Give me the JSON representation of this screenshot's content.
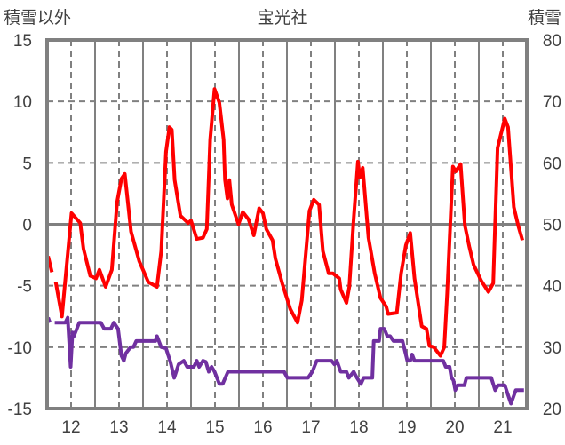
{
  "chart_data": {
    "type": "line",
    "title": "宝光社",
    "ylabel_left": "積雪以外",
    "ylabel_right": "積雪",
    "xlim": [
      11.5,
      21.5
    ],
    "ylim_left": [
      -15,
      15
    ],
    "ylim_right": [
      20,
      80
    ],
    "x_ticks": [
      "12",
      "13",
      "14",
      "15",
      "16",
      "17",
      "18",
      "19",
      "20",
      "21"
    ],
    "y_ticks_left": [
      "-15",
      "-10",
      "-5",
      "0",
      "5",
      "10",
      "15"
    ],
    "y_ticks_right": [
      "20",
      "30",
      "40",
      "50",
      "60",
      "70",
      "80"
    ],
    "grid": true,
    "colors": {
      "left_series": "#ff0000",
      "right_series": "#7030a0",
      "grid": "#808080"
    },
    "series": [
      {
        "name": "積雪以外",
        "axis": "left",
        "segments": [
          [
            [
              11.52,
              -2.6
            ],
            [
              11.6,
              -3.9
            ]
          ],
          [
            [
              11.68,
              -4.7
            ],
            [
              11.81,
              -7.5
            ],
            [
              12.01,
              0.9
            ],
            [
              12.19,
              0.1
            ],
            [
              12.26,
              -2.0
            ],
            [
              12.4,
              -4.2
            ],
            [
              12.52,
              -4.4
            ],
            [
              12.59,
              -3.7
            ],
            [
              12.72,
              -5.1
            ],
            [
              12.85,
              -3.7
            ],
            [
              12.96,
              1.8
            ],
            [
              13.05,
              3.7
            ],
            [
              13.12,
              4.1
            ],
            [
              13.25,
              -0.6
            ],
            [
              13.42,
              -3.0
            ],
            [
              13.61,
              -4.7
            ],
            [
              13.79,
              -5.1
            ],
            [
              13.88,
              -2.2
            ],
            [
              13.98,
              5.9
            ],
            [
              14.05,
              7.9
            ],
            [
              14.1,
              7.7
            ],
            [
              14.16,
              3.6
            ],
            [
              14.28,
              0.7
            ],
            [
              14.44,
              0.1
            ],
            [
              14.5,
              0.3
            ],
            [
              14.62,
              -1.2
            ],
            [
              14.75,
              -1.1
            ],
            [
              14.83,
              -0.4
            ],
            [
              14.9,
              6.9
            ],
            [
              14.99,
              11.0
            ],
            [
              15.09,
              9.9
            ],
            [
              15.18,
              6.9
            ],
            [
              15.21,
              3.6
            ],
            [
              15.26,
              2.1
            ],
            [
              15.3,
              3.6
            ],
            [
              15.35,
              1.6
            ],
            [
              15.49,
              0.0
            ],
            [
              15.58,
              1.0
            ],
            [
              15.7,
              0.4
            ],
            [
              15.81,
              -0.9
            ],
            [
              15.92,
              1.3
            ],
            [
              16.0,
              0.9
            ],
            [
              16.07,
              -0.4
            ],
            [
              16.2,
              -1.3
            ],
            [
              16.26,
              -2.8
            ],
            [
              16.41,
              -4.9
            ],
            [
              16.57,
              -6.9
            ],
            [
              16.72,
              -8.0
            ],
            [
              16.81,
              -6.2
            ],
            [
              16.97,
              1.1
            ],
            [
              17.06,
              2.0
            ],
            [
              17.17,
              1.6
            ],
            [
              17.25,
              -2.2
            ],
            [
              17.37,
              -4.0
            ],
            [
              17.46,
              -4.0
            ],
            [
              17.59,
              -4.4
            ],
            [
              17.62,
              -5.3
            ],
            [
              17.74,
              -6.4
            ],
            [
              17.8,
              -5.1
            ],
            [
              17.89,
              0.4
            ],
            [
              17.98,
              5.1
            ],
            [
              18.02,
              3.8
            ],
            [
              18.08,
              4.6
            ],
            [
              18.2,
              -1.1
            ],
            [
              18.33,
              -4.0
            ],
            [
              18.45,
              -6.0
            ],
            [
              18.57,
              -6.7
            ],
            [
              18.61,
              -7.3
            ],
            [
              18.79,
              -7.2
            ],
            [
              18.88,
              -4.0
            ],
            [
              18.98,
              -1.7
            ],
            [
              19.07,
              -0.7
            ],
            [
              19.16,
              -4.4
            ],
            [
              19.31,
              -8.3
            ],
            [
              19.41,
              -8.5
            ],
            [
              19.47,
              -9.9
            ],
            [
              19.56,
              -10.0
            ],
            [
              19.7,
              -10.7
            ],
            [
              19.78,
              -10.0
            ],
            [
              19.84,
              -5.6
            ],
            [
              19.96,
              4.7
            ],
            [
              20.02,
              4.3
            ],
            [
              20.12,
              4.9
            ],
            [
              20.21,
              -0.1
            ],
            [
              20.3,
              -1.8
            ],
            [
              20.39,
              -3.3
            ],
            [
              20.55,
              -4.6
            ],
            [
              20.7,
              -5.5
            ],
            [
              20.8,
              -4.8
            ],
            [
              20.89,
              6.2
            ],
            [
              21.04,
              8.6
            ],
            [
              21.11,
              7.9
            ],
            [
              21.23,
              1.4
            ],
            [
              21.32,
              -0.1
            ],
            [
              21.41,
              -1.3
            ]
          ]
        ]
      },
      {
        "name": "積雪",
        "axis": "right",
        "segments": [
          [
            [
              11.52,
              34.8
            ],
            [
              11.56,
              34
            ]
          ],
          [
            [
              11.66,
              34
            ],
            [
              11.88,
              34
            ],
            [
              11.93,
              34.8
            ],
            [
              11.99,
              26.8
            ],
            [
              12.03,
              32.4
            ],
            [
              12.06,
              31.8
            ],
            [
              12.17,
              34
            ],
            [
              12.62,
              34
            ],
            [
              12.69,
              33
            ],
            [
              12.83,
              33
            ],
            [
              12.89,
              34
            ],
            [
              12.98,
              33
            ],
            [
              13.05,
              28.6
            ],
            [
              13.1,
              27.8
            ],
            [
              13.14,
              29
            ],
            [
              13.24,
              30
            ],
            [
              13.3,
              30
            ],
            [
              13.36,
              31
            ],
            [
              13.76,
              31
            ],
            [
              13.79,
              31.8
            ],
            [
              13.88,
              30
            ],
            [
              13.98,
              29.8
            ],
            [
              14.07,
              27.6
            ],
            [
              14.15,
              25
            ],
            [
              14.24,
              27.2
            ],
            [
              14.35,
              27.8
            ],
            [
              14.42,
              26.8
            ],
            [
              14.56,
              26.8
            ],
            [
              14.62,
              27.8
            ],
            [
              14.67,
              26.8
            ],
            [
              14.75,
              27.8
            ],
            [
              14.81,
              27.6
            ],
            [
              14.87,
              26
            ],
            [
              14.93,
              26.8
            ],
            [
              14.99,
              26
            ],
            [
              15.09,
              24
            ],
            [
              15.16,
              24
            ],
            [
              15.27,
              26
            ],
            [
              16.44,
              26
            ],
            [
              16.51,
              25
            ],
            [
              16.94,
              25
            ],
            [
              17.03,
              26
            ],
            [
              17.12,
              27.8
            ],
            [
              17.43,
              27.8
            ],
            [
              17.49,
              27.2
            ],
            [
              17.54,
              27.8
            ],
            [
              17.62,
              26
            ],
            [
              17.74,
              26
            ],
            [
              17.79,
              25
            ],
            [
              17.89,
              26
            ],
            [
              17.96,
              25
            ],
            [
              18.04,
              24
            ],
            [
              18.1,
              25
            ],
            [
              18.28,
              25
            ],
            [
              18.31,
              31
            ],
            [
              18.42,
              31
            ],
            [
              18.45,
              33
            ],
            [
              18.53,
              33
            ],
            [
              18.59,
              31.8
            ],
            [
              18.65,
              31.8
            ],
            [
              18.72,
              31
            ],
            [
              18.91,
              31
            ],
            [
              19.01,
              27.8
            ],
            [
              19.07,
              27.8
            ],
            [
              19.11,
              28.8
            ],
            [
              19.16,
              27.8
            ],
            [
              19.76,
              27.8
            ],
            [
              19.81,
              26.8
            ],
            [
              19.89,
              26.8
            ],
            [
              19.93,
              25
            ],
            [
              19.97,
              24.6
            ],
            [
              20.01,
              23
            ],
            [
              20.06,
              23.8
            ],
            [
              20.2,
              23.8
            ],
            [
              20.24,
              25
            ],
            [
              20.76,
              25
            ],
            [
              20.84,
              23
            ],
            [
              20.9,
              23.8
            ],
            [
              21.04,
              23.8
            ],
            [
              21.17,
              20.8
            ],
            [
              21.27,
              23
            ],
            [
              21.44,
              23
            ]
          ]
        ]
      }
    ]
  }
}
